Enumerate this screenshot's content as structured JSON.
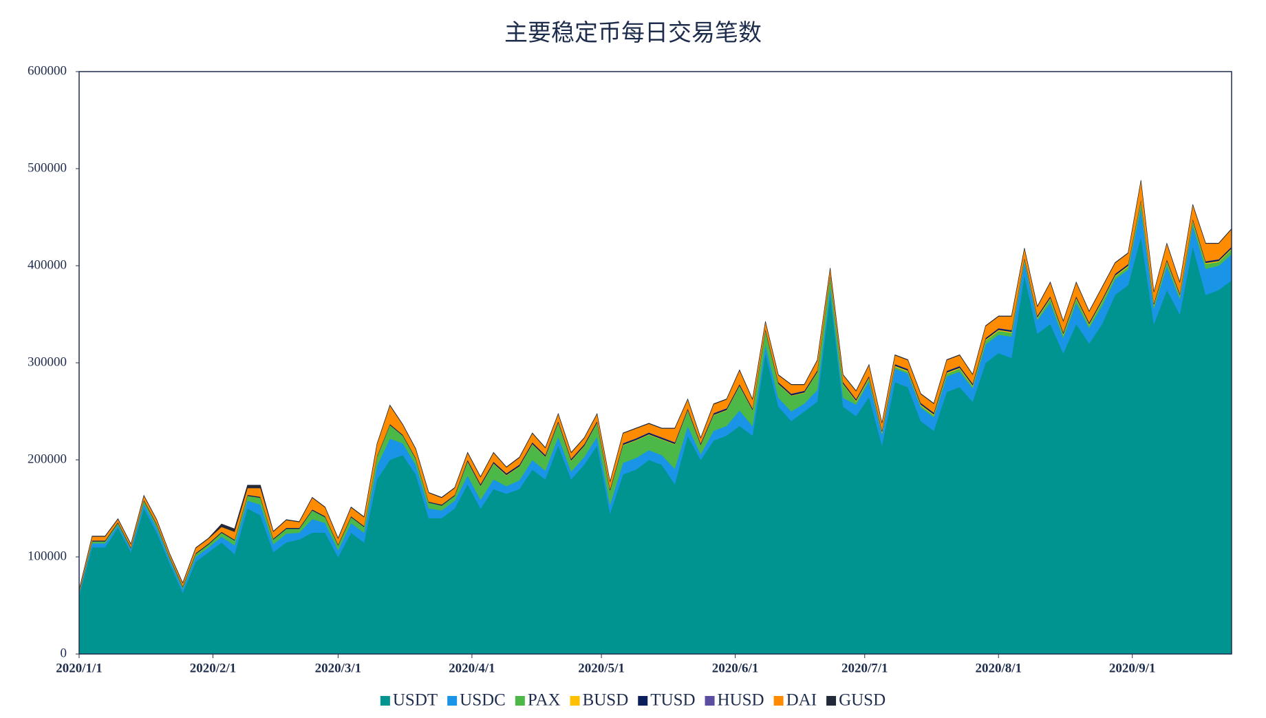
{
  "chart_data": {
    "type": "stacked_area",
    "title": "主要稳定币每日交易笔数",
    "x": [
      "2020/1/1",
      "2020/1/4",
      "2020/1/7",
      "2020/1/10",
      "2020/1/13",
      "2020/1/16",
      "2020/1/19",
      "2020/1/22",
      "2020/1/25",
      "2020/1/28",
      "2020/1/31",
      "2020/2/3",
      "2020/2/6",
      "2020/2/9",
      "2020/2/12",
      "2020/2/15",
      "2020/2/18",
      "2020/2/21",
      "2020/2/24",
      "2020/2/27",
      "2020/3/1",
      "2020/3/4",
      "2020/3/7",
      "2020/3/10",
      "2020/3/13",
      "2020/3/16",
      "2020/3/19",
      "2020/3/22",
      "2020/3/25",
      "2020/3/28",
      "2020/3/31",
      "2020/4/3",
      "2020/4/6",
      "2020/4/9",
      "2020/4/12",
      "2020/4/15",
      "2020/4/18",
      "2020/4/21",
      "2020/4/24",
      "2020/4/27",
      "2020/4/30",
      "2020/5/3",
      "2020/5/6",
      "2020/5/9",
      "2020/5/12",
      "2020/5/15",
      "2020/5/18",
      "2020/5/21",
      "2020/5/24",
      "2020/5/27",
      "2020/5/30",
      "2020/6/2",
      "2020/6/5",
      "2020/6/8",
      "2020/6/11",
      "2020/6/14",
      "2020/6/17",
      "2020/6/20",
      "2020/6/23",
      "2020/6/26",
      "2020/6/29",
      "2020/7/2",
      "2020/7/5",
      "2020/7/8",
      "2020/7/11",
      "2020/7/14",
      "2020/7/17",
      "2020/7/20",
      "2020/7/23",
      "2020/7/26",
      "2020/7/29",
      "2020/8/1",
      "2020/8/4",
      "2020/8/7",
      "2020/8/10",
      "2020/8/13",
      "2020/8/16",
      "2020/8/19",
      "2020/8/22",
      "2020/8/25",
      "2020/8/28",
      "2020/8/31",
      "2020/9/3",
      "2020/9/6",
      "2020/9/9",
      "2020/9/12",
      "2020/9/15",
      "2020/9/18",
      "2020/9/21",
      "2020/9/24"
    ],
    "xlim": [
      "2020/1/1",
      "2020/9/24"
    ],
    "xticks": [
      "2020/1/1",
      "2020/2/1",
      "2020/3/1",
      "2020/4/1",
      "2020/5/1",
      "2020/6/1",
      "2020/7/1",
      "2020/8/1",
      "2020/9/1"
    ],
    "ylim": [
      0,
      600000
    ],
    "yticks": [
      0,
      100000,
      200000,
      300000,
      400000,
      500000,
      600000
    ],
    "grid": false,
    "legend": "bottom",
    "series": [
      {
        "name": "USDT",
        "color": "#009490",
        "values": [
          60000,
          110000,
          110000,
          130000,
          105000,
          150000,
          125000,
          93000,
          63000,
          95000,
          105000,
          115000,
          103000,
          150000,
          143000,
          105000,
          115000,
          118000,
          125000,
          125000,
          100000,
          125000,
          115000,
          180000,
          200000,
          205000,
          185000,
          140000,
          140000,
          150000,
          175000,
          150000,
          170000,
          165000,
          170000,
          190000,
          180000,
          215000,
          180000,
          195000,
          215000,
          145000,
          185000,
          190000,
          200000,
          195000,
          175000,
          225000,
          200000,
          220000,
          225000,
          235000,
          225000,
          310000,
          255000,
          240000,
          250000,
          260000,
          370000,
          255000,
          245000,
          265000,
          215000,
          280000,
          275000,
          240000,
          230000,
          270000,
          275000,
          260000,
          300000,
          310000,
          305000,
          390000,
          330000,
          340000,
          310000,
          340000,
          320000,
          340000,
          370000,
          380000,
          430000,
          340000,
          375000,
          350000,
          420000,
          370000,
          375000,
          385000
        ]
      },
      {
        "name": "USDC",
        "color": "#1a94e6",
        "values": [
          2000,
          4000,
          4000,
          3000,
          3000,
          5000,
          5000,
          4000,
          4000,
          5000,
          5000,
          6000,
          9000,
          8000,
          11000,
          8000,
          9000,
          7000,
          14000,
          10000,
          7000,
          10000,
          10000,
          14000,
          22000,
          12000,
          10000,
          10000,
          8000,
          8000,
          9000,
          9000,
          10000,
          8000,
          9000,
          10000,
          9000,
          9000,
          8000,
          8000,
          9000,
          9000,
          12000,
          12000,
          10000,
          10000,
          16000,
          10000,
          6000,
          10000,
          10000,
          16000,
          10000,
          9000,
          9000,
          10000,
          8000,
          12000,
          8000,
          9000,
          12000,
          16000,
          11000,
          14000,
          14000,
          14000,
          14000,
          16000,
          16000,
          14000,
          19000,
          19000,
          22000,
          14000,
          14000,
          22000,
          16000,
          22000,
          16000,
          19000,
          16000,
          16000,
          30000,
          16000,
          25000,
          16000,
          22000,
          27000,
          25000,
          27000
        ]
      },
      {
        "name": "PAX",
        "color": "#4cb848",
        "values": [
          1000,
          2000,
          2000,
          2000,
          1000,
          3000,
          3000,
          2000,
          2000,
          3000,
          3000,
          4000,
          5000,
          5000,
          7000,
          5000,
          5000,
          4000,
          9000,
          6000,
          5000,
          6000,
          6000,
          9000,
          14000,
          8000,
          6000,
          6000,
          5000,
          5000,
          14000,
          14000,
          16000,
          11000,
          14000,
          16000,
          14000,
          14000,
          11000,
          11000,
          14000,
          14000,
          18000,
          18000,
          16000,
          16000,
          25000,
          16000,
          9000,
          16000,
          16000,
          25000,
          16000,
          14000,
          14000,
          16000,
          11000,
          18000,
          11000,
          14000,
          3000,
          3000,
          2000,
          2000,
          2000,
          2000,
          2000,
          3000,
          3000,
          2000,
          4000,
          4000,
          4000,
          2000,
          2000,
          4000,
          3000,
          4000,
          3000,
          4000,
          3000,
          3000,
          6000,
          3000,
          4000,
          3000,
          4000,
          5000,
          4000,
          5000
        ]
      },
      {
        "name": "BUSD",
        "color": "#ffc000",
        "values": [
          0,
          0,
          0,
          0,
          0,
          0,
          0,
          0,
          0,
          0,
          0,
          0,
          0,
          0,
          0,
          0,
          0,
          0,
          0,
          0,
          0,
          0,
          0,
          0,
          0,
          0,
          0,
          0,
          0,
          0,
          500,
          500,
          500,
          500,
          500,
          500,
          500,
          500,
          500,
          500,
          500,
          500,
          500,
          500,
          500,
          500,
          500,
          500,
          500,
          500,
          500,
          500,
          500,
          500,
          500,
          500,
          500,
          500,
          500,
          500,
          1000,
          1000,
          1000,
          1000,
          1000,
          1000,
          1000,
          1000,
          1000,
          1000,
          1000,
          1000,
          1000,
          1000,
          1000,
          1000,
          1000,
          1000,
          1000,
          1000,
          1000,
          1000,
          1000,
          1000,
          1000,
          1000,
          1000,
          1000,
          1000,
          1000
        ]
      },
      {
        "name": "TUSD",
        "color": "#0a1f5c",
        "values": [
          1000,
          1000,
          1000,
          1000,
          1000,
          1000,
          1000,
          1000,
          1000,
          1000,
          1000,
          1000,
          1000,
          1000,
          1000,
          1000,
          1000,
          1000,
          1000,
          1000,
          1000,
          1000,
          1000,
          1000,
          1000,
          1000,
          1000,
          1000,
          1000,
          1000,
          1500,
          1500,
          1500,
          1500,
          1500,
          1500,
          1500,
          1500,
          1500,
          1500,
          1500,
          1500,
          1500,
          1500,
          1500,
          1500,
          1500,
          1500,
          1500,
          1500,
          1500,
          1500,
          1500,
          1500,
          1500,
          1500,
          1500,
          1500,
          1500,
          1500,
          1500,
          1500,
          1500,
          1500,
          1500,
          1500,
          1500,
          1500,
          1500,
          1500,
          1500,
          1500,
          1500,
          1500,
          1500,
          1500,
          1500,
          1500,
          1500,
          1500,
          1500,
          1500,
          1500,
          1500,
          1500,
          1500,
          1500,
          1500,
          1500,
          1500
        ]
      },
      {
        "name": "HUSD",
        "color": "#5b4da0",
        "values": [
          0,
          0,
          0,
          0,
          0,
          0,
          0,
          0,
          0,
          0,
          0,
          0,
          0,
          0,
          0,
          0,
          0,
          0,
          0,
          0,
          0,
          0,
          0,
          0,
          0,
          0,
          0,
          0,
          0,
          0,
          300,
          300,
          300,
          300,
          300,
          300,
          300,
          300,
          300,
          300,
          300,
          300,
          300,
          300,
          300,
          300,
          300,
          300,
          300,
          300,
          300,
          300,
          300,
          300,
          300,
          300,
          300,
          300,
          300,
          300,
          300,
          300,
          300,
          300,
          300,
          300,
          300,
          300,
          300,
          300,
          300,
          300,
          300,
          300,
          300,
          300,
          300,
          300,
          300,
          300,
          300,
          300,
          300,
          300,
          300,
          300,
          300,
          300,
          300,
          300
        ]
      },
      {
        "name": "DAI",
        "color": "#ff8c00",
        "values": [
          2000,
          4000,
          4000,
          3000,
          3000,
          4000,
          4000,
          3000,
          3000,
          5000,
          5000,
          5000,
          8000,
          7000,
          9000,
          7000,
          8000,
          6000,
          12000,
          9000,
          6000,
          9000,
          9000,
          12000,
          19000,
          10000,
          9000,
          9000,
          7000,
          7000,
          7000,
          7000,
          9000,
          6000,
          7000,
          9000,
          7000,
          7000,
          6000,
          6000,
          7000,
          7000,
          10000,
          10000,
          9000,
          9000,
          14000,
          9000,
          5000,
          9000,
          9000,
          14000,
          9000,
          7000,
          7000,
          9000,
          6000,
          10000,
          6000,
          7000,
          8000,
          11000,
          7000,
          9000,
          9000,
          9000,
          9000,
          11000,
          11000,
          9000,
          12000,
          12000,
          14000,
          9000,
          9000,
          14000,
          11000,
          14000,
          11000,
          12000,
          11000,
          11000,
          19000,
          11000,
          16000,
          11000,
          14000,
          18000,
          16000,
          18000
        ]
      },
      {
        "name": "GUSD",
        "color": "#222a3a",
        "values": [
          500,
          500,
          500,
          500,
          500,
          500,
          500,
          500,
          500,
          500,
          500,
          3000,
          3000,
          3000,
          3000,
          500,
          500,
          500,
          500,
          500,
          500,
          500,
          500,
          500,
          500,
          500,
          500,
          500,
          500,
          500,
          500,
          500,
          500,
          500,
          500,
          500,
          500,
          500,
          500,
          500,
          500,
          500,
          500,
          500,
          500,
          500,
          500,
          500,
          500,
          500,
          500,
          500,
          500,
          500,
          500,
          500,
          500,
          500,
          500,
          500,
          500,
          500,
          500,
          500,
          500,
          500,
          500,
          500,
          500,
          500,
          500,
          500,
          500,
          500,
          500,
          500,
          500,
          500,
          500,
          500,
          500,
          500,
          500,
          500,
          500,
          500,
          500,
          500,
          500,
          500
        ]
      }
    ]
  }
}
